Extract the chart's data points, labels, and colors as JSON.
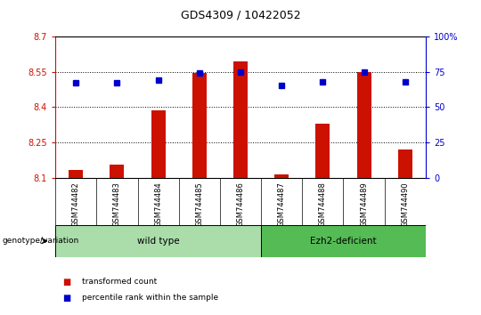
{
  "title": "GDS4309 / 10422052",
  "samples": [
    "GSM744482",
    "GSM744483",
    "GSM744484",
    "GSM744485",
    "GSM744486",
    "GSM744487",
    "GSM744488",
    "GSM744489",
    "GSM744490"
  ],
  "transformed_count": [
    8.135,
    8.155,
    8.385,
    8.545,
    8.595,
    8.115,
    8.33,
    8.55,
    8.22
  ],
  "percentile_rank": [
    67,
    67,
    69,
    74,
    75,
    65,
    68,
    75,
    68
  ],
  "ylim_left": [
    8.1,
    8.7
  ],
  "ylim_right": [
    0,
    100
  ],
  "yticks_left": [
    8.1,
    8.25,
    8.4,
    8.55,
    8.7
  ],
  "ytick_labels_left": [
    "8.1",
    "8.25",
    "8.4",
    "8.55",
    "8.7"
  ],
  "yticks_right": [
    0,
    25,
    50,
    75,
    100
  ],
  "ytick_labels_right": [
    "0",
    "25",
    "50",
    "75",
    "100%"
  ],
  "groups": [
    {
      "label": "wild type",
      "samples": [
        0,
        1,
        2,
        3,
        4
      ],
      "color": "#aaddaa"
    },
    {
      "label": "Ezh2-deficient",
      "samples": [
        5,
        6,
        7,
        8
      ],
      "color": "#55bb55"
    }
  ],
  "bar_color": "#CC1100",
  "dot_color": "#0000CC",
  "bar_width": 0.35,
  "group_label_prefix": "genotype/variation",
  "legend_items": [
    {
      "label": "transformed count",
      "color": "#CC1100"
    },
    {
      "label": "percentile rank within the sample",
      "color": "#0000CC"
    }
  ],
  "left_axis_color": "#CC1100",
  "right_axis_color": "#0000CC",
  "tick_area_bg": "#c8c8c8",
  "group_area_bg": "#aaddaa"
}
